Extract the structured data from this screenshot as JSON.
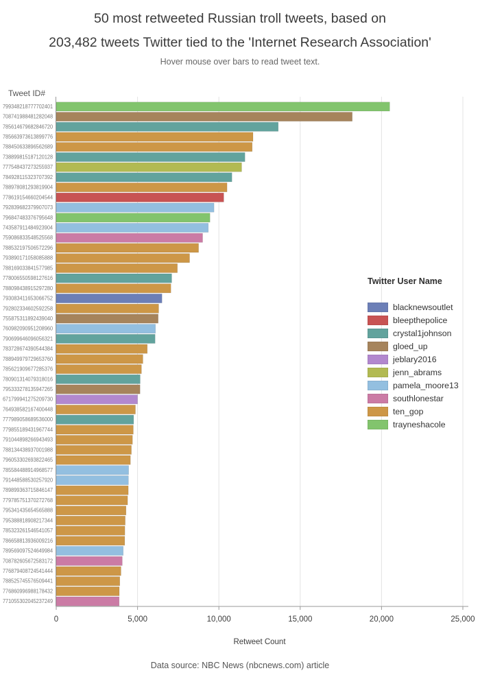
{
  "header": {
    "title_line1": "50 most retweeted Russian troll tweets, based on",
    "title_line2": "203,482 tweets Twitter tied to the 'Internet Research Association'",
    "subtitle": "Hover mouse over bars to read tweet text."
  },
  "footer": {
    "text": "Data source: NBC News (nbcnews.com) article"
  },
  "chart_data": {
    "type": "bar",
    "orientation": "horizontal",
    "title": "50 most retweeted Russian troll tweets, based on 203,482 tweets Twitter tied to the 'Internet Research Association'",
    "subtitle": "Hover mouse over bars to read tweet text.",
    "xlabel": "Retweet Count",
    "ylabel": "Tweet ID#",
    "xlim": [
      0,
      25000
    ],
    "grid": true,
    "xtick_values": [
      0,
      5000,
      10000,
      15000,
      20000,
      25000
    ],
    "xtick_labels": [
      "0",
      "5,000",
      "10,000",
      "15,000",
      "20,000",
      "25,000"
    ],
    "legend": {
      "title": "Twitter User Name",
      "position": "right",
      "entries": [
        {
          "name": "blacknewsoutlet",
          "color": "#6c7fb7"
        },
        {
          "name": "bleepthepolice",
          "color": "#c85353"
        },
        {
          "name": "crystal1johnson",
          "color": "#62a39d"
        },
        {
          "name": "gloed_up",
          "color": "#a6845c"
        },
        {
          "name": "jeblary2016",
          "color": "#b288ce"
        },
        {
          "name": "jenn_abrams",
          "color": "#b2ba52"
        },
        {
          "name": "pamela_moore13",
          "color": "#93bfe0"
        },
        {
          "name": "southlonestar",
          "color": "#cb7ba5"
        },
        {
          "name": "ten_gop",
          "color": "#cd9747"
        },
        {
          "name": "trayneshacole",
          "color": "#82c46d"
        }
      ]
    },
    "rows": [
      {
        "tweet_id": "799348218777702401",
        "user": "trayneshacole",
        "retweets": 20500
      },
      {
        "tweet_id": "708741988481282048",
        "user": "gloed_up",
        "retweets": 18200
      },
      {
        "tweet_id": "785614679682846720",
        "user": "crystal1johnson",
        "retweets": 13650
      },
      {
        "tweet_id": "785663973613899776",
        "user": "ten_gop",
        "retweets": 12100
      },
      {
        "tweet_id": "788450633896562689",
        "user": "ten_gop",
        "retweets": 12050
      },
      {
        "tweet_id": "738899815187120128",
        "user": "crystal1johnson",
        "retweets": 11600
      },
      {
        "tweet_id": "777548437273255937",
        "user": "jenn_abrams",
        "retweets": 11400
      },
      {
        "tweet_id": "784928115323707392",
        "user": "crystal1johnson",
        "retweets": 10800
      },
      {
        "tweet_id": "788978081293819904",
        "user": "ten_gop",
        "retweets": 10500
      },
      {
        "tweet_id": "778619154660204544",
        "user": "bleepthepolice",
        "retweets": 10300
      },
      {
        "tweet_id": "792839682379907073",
        "user": "pamela_moore13",
        "retweets": 9700
      },
      {
        "tweet_id": "796847483376795648",
        "user": "trayneshacole",
        "retweets": 9450
      },
      {
        "tweet_id": "743587911484923904",
        "user": "pamela_moore13",
        "retweets": 9350
      },
      {
        "tweet_id": "759086833548525568",
        "user": "southlonestar",
        "retweets": 9000
      },
      {
        "tweet_id": "788532197506572296",
        "user": "ten_gop",
        "retweets": 8750
      },
      {
        "tweet_id": "793890171058085888",
        "user": "ten_gop",
        "retweets": 8200
      },
      {
        "tweet_id": "788169033841577985",
        "user": "ten_gop",
        "retweets": 7450
      },
      {
        "tweet_id": "778006550598127616",
        "user": "crystal1johnson",
        "retweets": 7100
      },
      {
        "tweet_id": "788098438915297280",
        "user": "ten_gop",
        "retweets": 7050
      },
      {
        "tweet_id": "793083411653066752",
        "user": "blacknewsoutlet",
        "retweets": 6500
      },
      {
        "tweet_id": "792802334602592258",
        "user": "ten_gop",
        "retweets": 6300
      },
      {
        "tweet_id": "755875311892439040",
        "user": "gloed_up",
        "retweets": 6270
      },
      {
        "tweet_id": "760982090951208960",
        "user": "pamela_moore13",
        "retweets": 6100
      },
      {
        "tweet_id": "790699646096056321",
        "user": "crystal1johnson",
        "retweets": 6080
      },
      {
        "tweet_id": "783728674390544384",
        "user": "ten_gop",
        "retweets": 5600
      },
      {
        "tweet_id": "788949979729653760",
        "user": "ten_gop",
        "retweets": 5330
      },
      {
        "tweet_id": "785621909677285376",
        "user": "ten_gop",
        "retweets": 5240
      },
      {
        "tweet_id": "780901314079318016",
        "user": "crystal1johnson",
        "retweets": 5160
      },
      {
        "tweet_id": "795333278135947265",
        "user": "gloed_up",
        "retweets": 5150
      },
      {
        "tweet_id": "671799941275209730",
        "user": "jeblary2016",
        "retweets": 5000
      },
      {
        "tweet_id": "764938582167400448",
        "user": "ten_gop",
        "retweets": 4870
      },
      {
        "tweet_id": "777989058689536000",
        "user": "crystal1johnson",
        "retweets": 4760
      },
      {
        "tweet_id": "779855189431967744",
        "user": "ten_gop",
        "retweets": 4740
      },
      {
        "tweet_id": "791044898266943493",
        "user": "ten_gop",
        "retweets": 4690
      },
      {
        "tweet_id": "788134438937001988",
        "user": "ten_gop",
        "retweets": 4620
      },
      {
        "tweet_id": "796053302693822465",
        "user": "ten_gop",
        "retweets": 4560
      },
      {
        "tweet_id": "785584488914968577",
        "user": "pamela_moore13",
        "retweets": 4450
      },
      {
        "tweet_id": "791448588530257920",
        "user": "pamela_moore13",
        "retweets": 4440
      },
      {
        "tweet_id": "789899363715846147",
        "user": "ten_gop",
        "retweets": 4430
      },
      {
        "tweet_id": "779785751370272768",
        "user": "ten_gop",
        "retweets": 4390
      },
      {
        "tweet_id": "795341435654565888",
        "user": "ten_gop",
        "retweets": 4290
      },
      {
        "tweet_id": "795388818908217344",
        "user": "ten_gop",
        "retweets": 4240
      },
      {
        "tweet_id": "785323261546541057",
        "user": "ten_gop",
        "retweets": 4220
      },
      {
        "tweet_id": "786658813936009216",
        "user": "ten_gop",
        "retweets": 4210
      },
      {
        "tweet_id": "789569097524649984",
        "user": "pamela_moore13",
        "retweets": 4120
      },
      {
        "tweet_id": "708782605672583172",
        "user": "southlonestar",
        "retweets": 4060
      },
      {
        "tweet_id": "776879408724541444",
        "user": "ten_gop",
        "retweets": 3980
      },
      {
        "tweet_id": "788525745576509441",
        "user": "ten_gop",
        "retweets": 3910
      },
      {
        "tweet_id": "776860996988178432",
        "user": "ten_gop",
        "retweets": 3880
      },
      {
        "tweet_id": "771055302045237249",
        "user": "southlonestar",
        "retweets": 3870
      }
    ]
  }
}
